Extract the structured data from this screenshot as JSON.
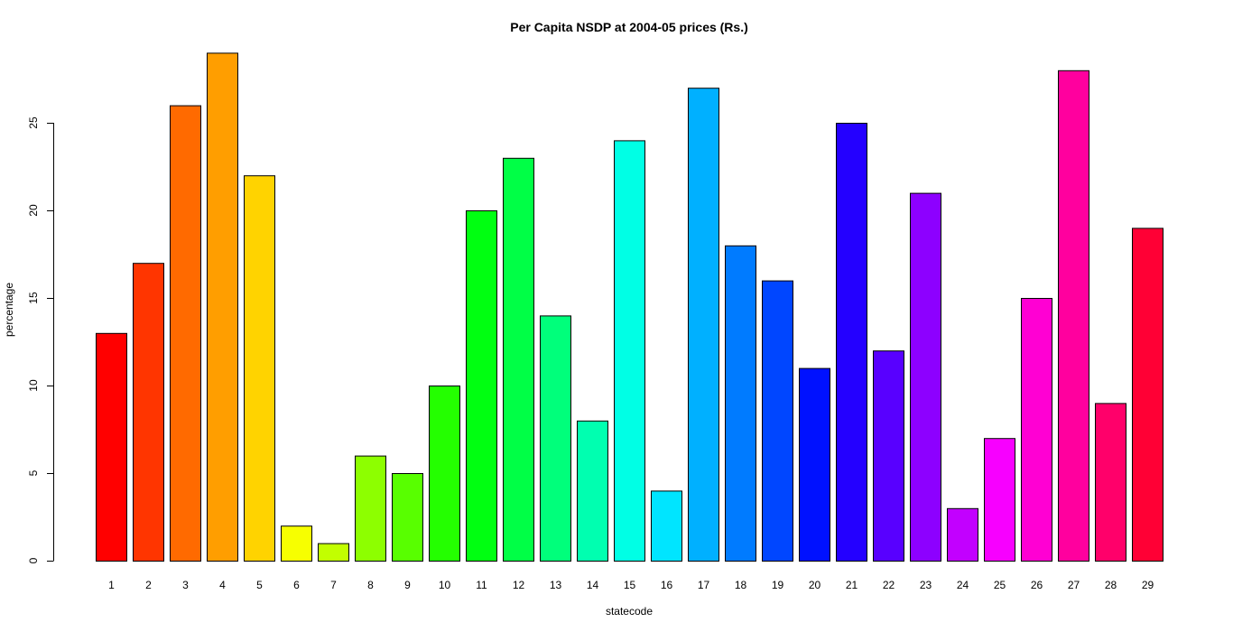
{
  "chart_data": {
    "type": "bar",
    "title": "Per Capita NSDP at 2004-05 prices (Rs.)",
    "xlabel": "statecode",
    "ylabel": "percentage",
    "ylim": [
      0,
      29
    ],
    "yticks": [
      0,
      5,
      10,
      15,
      20,
      25
    ],
    "grid": false,
    "legend": "none",
    "categories": [
      "1",
      "2",
      "3",
      "4",
      "5",
      "6",
      "7",
      "8",
      "9",
      "10",
      "11",
      "12",
      "13",
      "14",
      "15",
      "16",
      "17",
      "18",
      "19",
      "20",
      "21",
      "22",
      "23",
      "24",
      "25",
      "26",
      "27",
      "28",
      "29"
    ],
    "values": [
      13,
      17,
      26,
      29,
      22,
      2,
      1,
      6,
      5,
      10,
      20,
      23,
      14,
      8,
      24,
      4,
      27,
      18,
      16,
      11,
      25,
      12,
      21,
      3,
      7,
      15,
      28,
      9,
      19
    ],
    "colors": [
      "#FF0000",
      "#FF3500",
      "#FF6A00",
      "#FF9E00",
      "#FFD300",
      "#F7FF00",
      "#C2FF00",
      "#8DFF00",
      "#58FF00",
      "#24FF00",
      "#00FF11",
      "#00FF46",
      "#00FF7B",
      "#00FFB0",
      "#00FFE5",
      "#00E5FF",
      "#00B0FF",
      "#007BFF",
      "#0046FF",
      "#0011FF",
      "#2400FF",
      "#5800FF",
      "#8D00FF",
      "#C200FF",
      "#F700FF",
      "#FF00D3",
      "#FF009E",
      "#FF006A",
      "#FF0035"
    ]
  }
}
